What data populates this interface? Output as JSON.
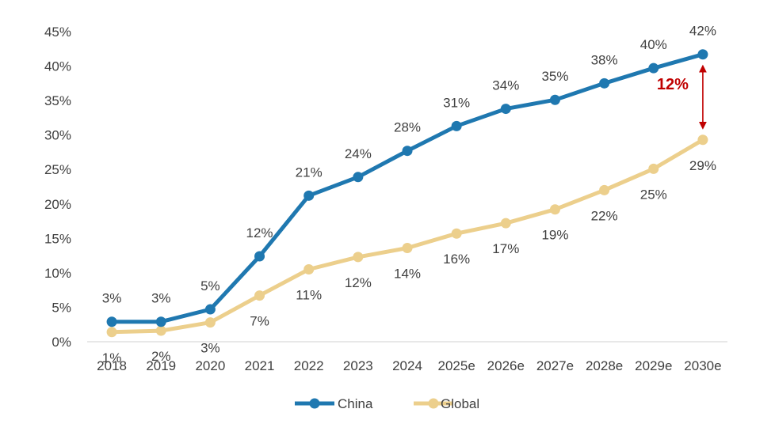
{
  "chart_data": {
    "type": "line",
    "categories": [
      "2018",
      "2019",
      "2020",
      "2021",
      "2022",
      "2023",
      "2024",
      "2025e",
      "2026e",
      "2027e",
      "2028e",
      "2029e",
      "2030e"
    ],
    "series": [
      {
        "name": "China",
        "color": "#1f78b0",
        "values": [
          3,
          3,
          5,
          12,
          21,
          24,
          28,
          31,
          34,
          35,
          38,
          40,
          42
        ],
        "plot_values": [
          2.9,
          2.9,
          4.7,
          12.4,
          21.2,
          23.9,
          27.7,
          31.3,
          33.8,
          35.1,
          37.5,
          39.7,
          41.7
        ],
        "labels": [
          "3%",
          "3%",
          "5%",
          "12%",
          "21%",
          "24%",
          "28%",
          "31%",
          "34%",
          "35%",
          "38%",
          "40%",
          "42%"
        ],
        "label_position": "above"
      },
      {
        "name": "Global",
        "color": "#eccf8c",
        "values": [
          1,
          2,
          3,
          7,
          11,
          12,
          14,
          16,
          17,
          19,
          22,
          25,
          29
        ],
        "plot_values": [
          1.4,
          1.6,
          2.8,
          6.7,
          10.5,
          12.3,
          13.6,
          15.7,
          17.2,
          19.2,
          22.0,
          25.1,
          29.3
        ],
        "labels": [
          "1%",
          "2%",
          "3%",
          "7%",
          "11%",
          "12%",
          "14%",
          "16%",
          "17%",
          "19%",
          "22%",
          "25%",
          "29%"
        ],
        "label_position": "below"
      }
    ],
    "y_ticks": [
      "0%",
      "5%",
      "10%",
      "15%",
      "20%",
      "25%",
      "30%",
      "35%",
      "40%",
      "45%"
    ],
    "ylim": [
      0,
      45
    ],
    "grid": false,
    "legend": "bottom-center",
    "annotation": {
      "text": "12%",
      "color": "#c00000",
      "category": "2030e"
    }
  }
}
